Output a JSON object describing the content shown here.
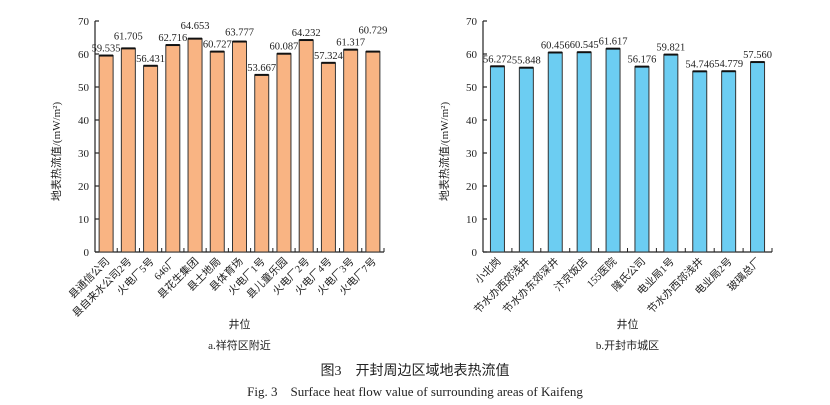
{
  "chart_data": [
    {
      "type": "bar",
      "ylabel": "地表热流值/(mW/m²)",
      "xlabel": "井位",
      "subcaption": "a.祥符区附近",
      "ylim": [
        0,
        70
      ],
      "yticks": [
        0,
        10,
        20,
        30,
        40,
        50,
        60,
        70
      ],
      "bar_color": "#F9B483",
      "categories": [
        "县通信公司",
        "县自来水公司2号",
        "火电厂5号",
        "646厂",
        "县花生集团",
        "县土地局",
        "县体育场",
        "火电厂1号",
        "县儿童乐园",
        "火电厂2号",
        "火电厂4号",
        "火电厂3号",
        "火电厂7号"
      ],
      "values": [
        59.535,
        61.705,
        56.431,
        62.716,
        64.653,
        60.727,
        63.777,
        53.667,
        60.087,
        64.232,
        57.324,
        61.317,
        60.729
      ],
      "labels": [
        "59.535",
        "61.705",
        "56.431",
        "62.716",
        "64.653",
        "60.727",
        "63.777",
        "53.667",
        "60.087",
        "64.232",
        "57.324",
        "61.317",
        "60.729"
      ]
    },
    {
      "type": "bar",
      "ylabel": "地表热流值/(mW/m²)",
      "xlabel": "井位",
      "subcaption": "b.开封市城区",
      "ylim": [
        0,
        70
      ],
      "yticks": [
        0,
        10,
        20,
        30,
        40,
        50,
        60,
        70
      ],
      "bar_color": "#6CCDF2",
      "categories": [
        "小北岗",
        "节水办西郊浅井",
        "节水办东郊深井",
        "汴京饭店",
        "155医院",
        "隆氏公司",
        "电业局1号",
        "节水办西郊浅井",
        "电业局2号",
        "玻璃总厂"
      ],
      "values": [
        56.272,
        55.848,
        60.456,
        60.545,
        61.617,
        56.176,
        59.821,
        54.746,
        54.779,
        57.56
      ],
      "labels": [
        "56.272",
        "55.848",
        "60.456",
        "60.545",
        "61.617",
        "56.176",
        "59.821",
        "54.746",
        "54.779",
        "57.560"
      ]
    }
  ],
  "figure": {
    "caption_cn": "图3　开封周边区域地表热流值",
    "caption_en": "Fig. 3　Surface heat flow value of surrounding areas of Kaifeng"
  }
}
